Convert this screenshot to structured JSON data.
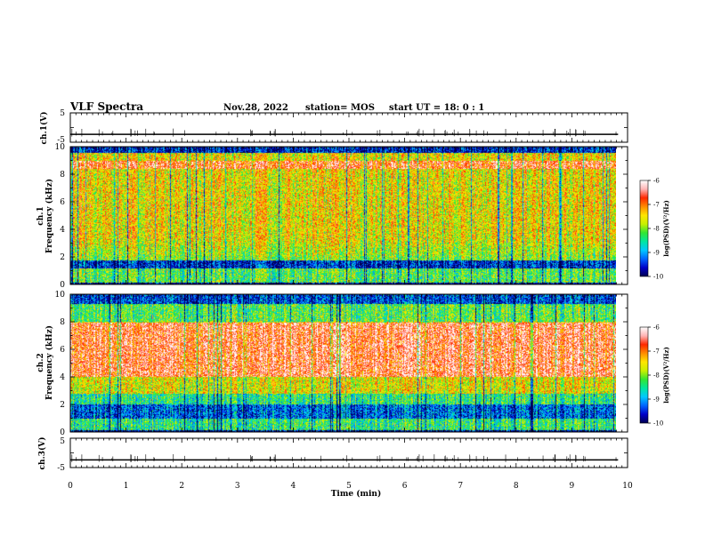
{
  "header": {
    "title": "VLF Spectra",
    "date": "Nov.28, 2022",
    "station": "station= MOS",
    "start_ut": "start  UT =  18: 0  : 1"
  },
  "colors": {
    "colormap": [
      "#000050",
      "#0000c8",
      "#0064ff",
      "#00c8ff",
      "#00e6a0",
      "#32e632",
      "#c8f000",
      "#ffe600",
      "#ff8c00",
      "#ff2800",
      "#ffb4b4",
      "#ffffff"
    ]
  },
  "chart_data": [
    {
      "type": "line",
      "name": "ch1-waveform",
      "ylabel": "ch.1(V)",
      "ylim": [
        -5,
        5
      ],
      "yticks": [
        "5",
        "-5"
      ],
      "x": [
        0,
        9.83
      ],
      "values": [
        -2.3,
        -2.3
      ]
    },
    {
      "type": "heatmap",
      "name": "ch1-spectrogram",
      "ylabel_line1": "ch.1",
      "ylabel_line2": "Frequency (kHz)",
      "ylim": [
        0,
        10
      ],
      "yticks": [
        "0",
        "2",
        "4",
        "6",
        "8",
        "10"
      ],
      "xlim": [
        0,
        10
      ],
      "colorbar": {
        "label": "log(PSD)(V²/Hz)",
        "range": [
          -10,
          -6
        ],
        "ticks": [
          "-6",
          "-7",
          "-8",
          "-9",
          "-10"
        ]
      }
    },
    {
      "type": "heatmap",
      "name": "ch2-spectrogram",
      "ylabel_line1": "ch.2",
      "ylabel_line2": "Frequency (kHz)",
      "ylim": [
        0,
        10
      ],
      "yticks": [
        "0",
        "2",
        "4",
        "6",
        "8",
        "10"
      ],
      "xlim": [
        0,
        10
      ],
      "colorbar": {
        "label": "log(PSD)(V²/Hz)",
        "range": [
          -10,
          -6
        ],
        "ticks": [
          "-6",
          "-7",
          "-8",
          "-9",
          "-10"
        ]
      }
    },
    {
      "type": "line",
      "name": "ch3-waveform",
      "ylabel": "ch.3(V)",
      "ylim": [
        -5,
        5
      ],
      "yticks": [
        "5",
        "-5"
      ],
      "x": [
        0,
        9.83
      ],
      "values": [
        -2.4,
        -2.4
      ]
    }
  ],
  "xaxis": {
    "label": "Time (min)",
    "ticks": [
      "0",
      "1",
      "2",
      "3",
      "4",
      "5",
      "6",
      "7",
      "8",
      "9",
      "10"
    ],
    "xlim": [
      0,
      10
    ]
  }
}
